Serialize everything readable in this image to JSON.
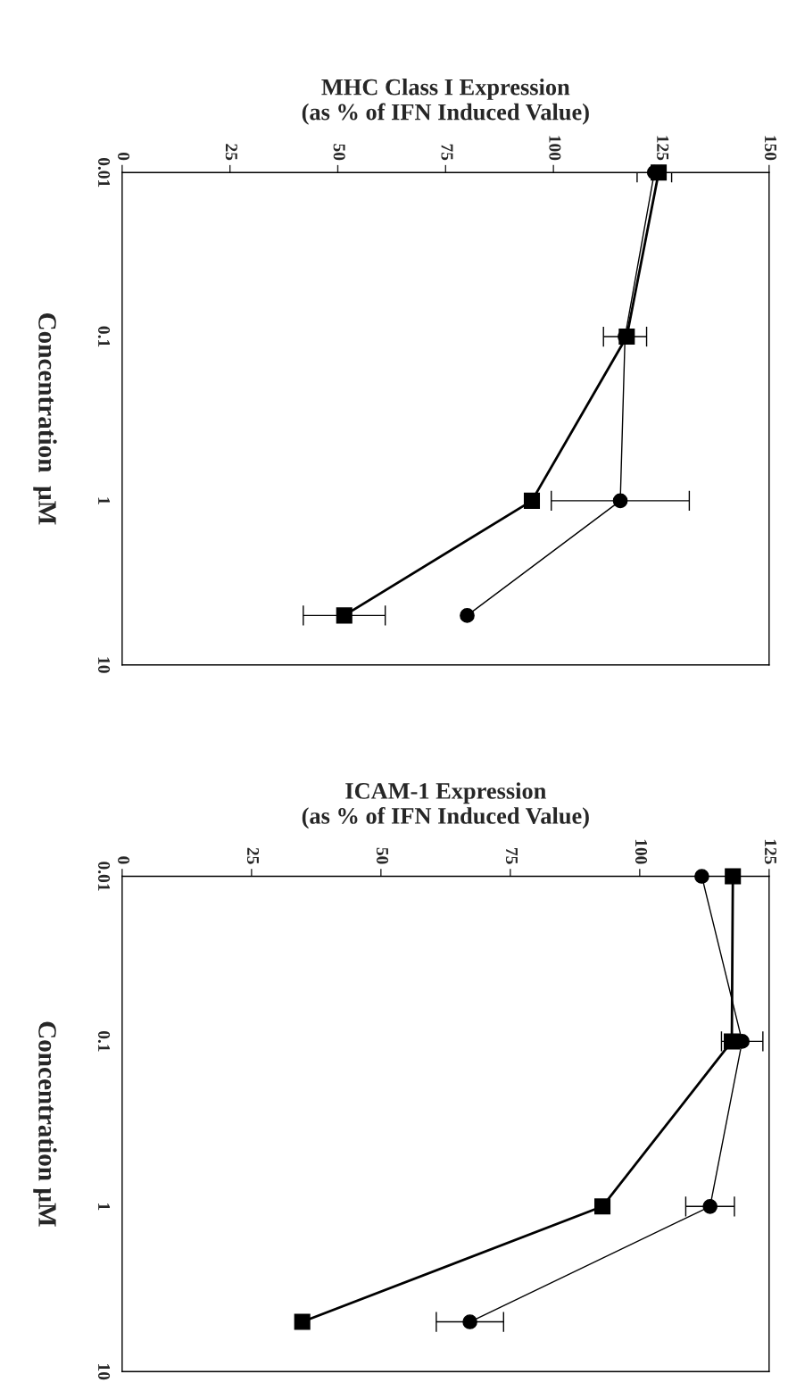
{
  "chart_data": [
    {
      "type": "line",
      "xlabel": "MHC Class I Expression\n(as % of IFN Induced Value)",
      "ylabel": "Concentration  µM",
      "log": "y",
      "grid": false,
      "xlim": [
        0,
        150
      ],
      "xticks": [
        0,
        25,
        50,
        75,
        100,
        125,
        150
      ],
      "ylim": [
        10,
        0.01
      ],
      "yticks": [
        0.01,
        0.1,
        1,
        10
      ],
      "series": [
        {
          "color": "#000000",
          "marker": "square",
          "x": [
            124.4,
            117,
            95,
            51.5
          ],
          "values": [
            0.01,
            0.1,
            1,
            5
          ],
          "xerrors": [
            null,
            null,
            null,
            9.5
          ]
        },
        {
          "color": "#000000",
          "marker": "circle",
          "x": [
            123.4,
            116.6,
            115.5,
            80
          ],
          "values": [
            0.01,
            0.1,
            1,
            5
          ],
          "xerrors": [
            4,
            5,
            16,
            null
          ]
        }
      ]
    },
    {
      "type": "line",
      "xlabel": "ICAM-1 Expression\n(as % of IFN Induced Value)",
      "ylabel": "Concentration µM",
      "log": "y",
      "grid": false,
      "xlim": [
        0,
        125
      ],
      "xticks": [
        0,
        25,
        50,
        75,
        100,
        125
      ],
      "ylim": [
        10,
        0.01
      ],
      "yticks": [
        0.01,
        0.1,
        1,
        10
      ],
      "series": [
        {
          "color": "#000000",
          "marker": "square",
          "x": [
            118,
            117.8,
            92.8,
            34.8
          ],
          "values": [
            0.01,
            0.1,
            1,
            5
          ]
        },
        {
          "color": "#000000",
          "marker": "circle",
          "x": [
            112,
            119.8,
            113.6,
            67.2
          ],
          "values": [
            0.01,
            0.1,
            1,
            5
          ],
          "xerrors": [
            null,
            4,
            4.7,
            6.5
          ]
        }
      ]
    }
  ]
}
